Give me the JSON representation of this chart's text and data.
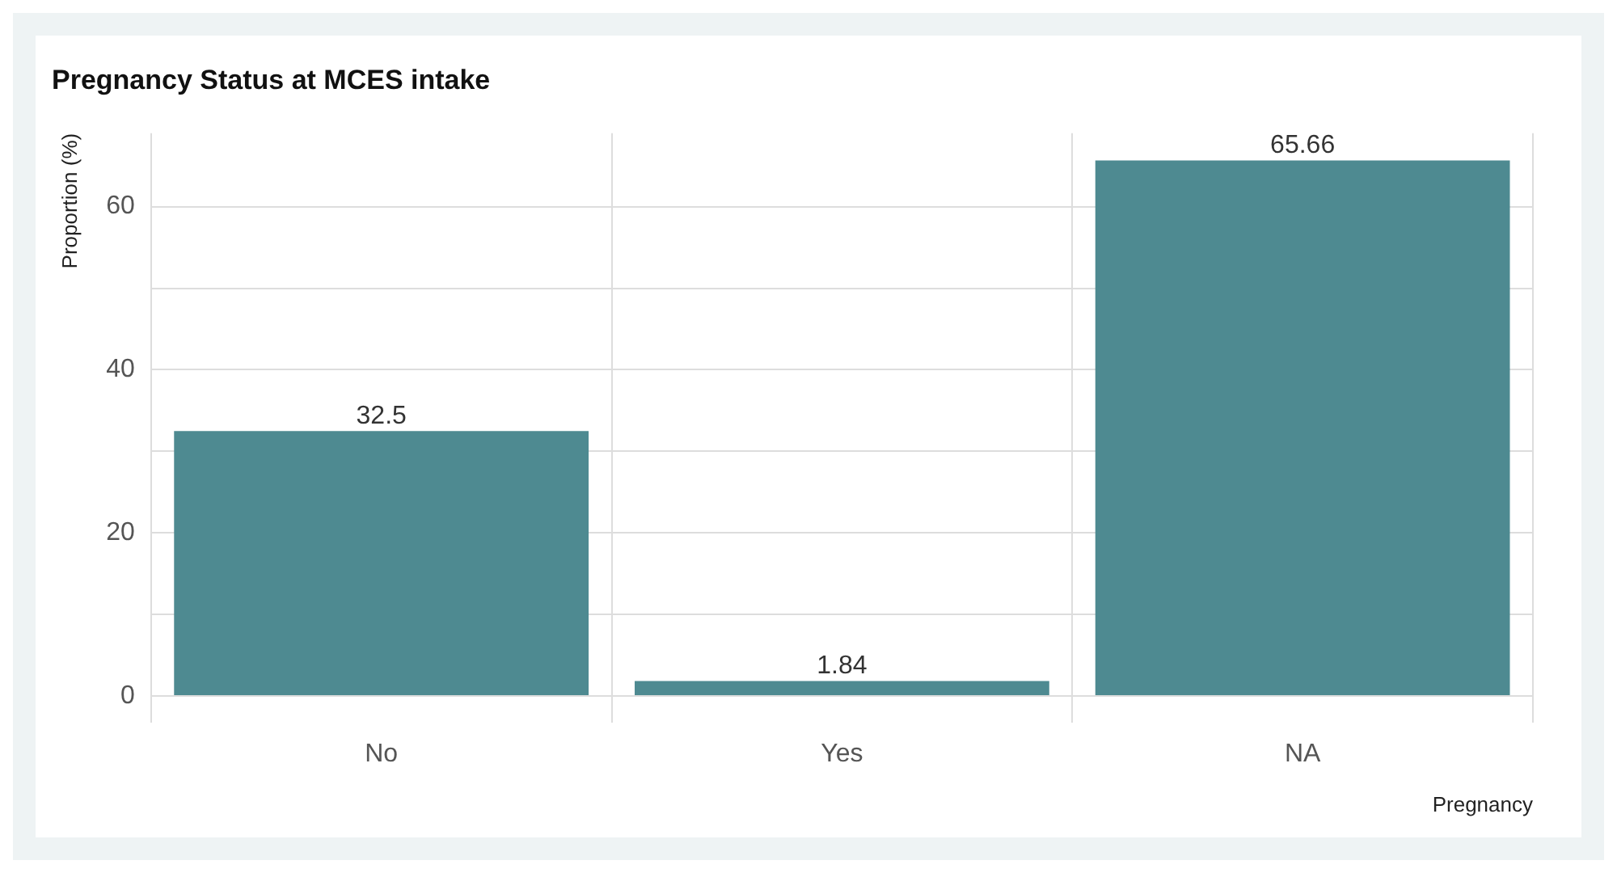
{
  "chart_data": {
    "type": "bar",
    "title": "Pregnancy Status at MCES intake",
    "xlabel": "Pregnancy",
    "ylabel": "Proportion (%)",
    "categories": [
      "No",
      "Yes",
      "NA"
    ],
    "values": [
      32.5,
      1.84,
      65.66
    ],
    "color": "#4e8a91",
    "ylim": [
      -3.3,
      69
    ],
    "yticks": [
      0,
      {
        "value": 10,
        "label": null
      },
      20,
      {
        "value": 30,
        "label": null
      },
      40,
      {
        "value": 50,
        "label": null
      },
      60
    ],
    "grid": true,
    "data_labels": true,
    "legend": false
  }
}
